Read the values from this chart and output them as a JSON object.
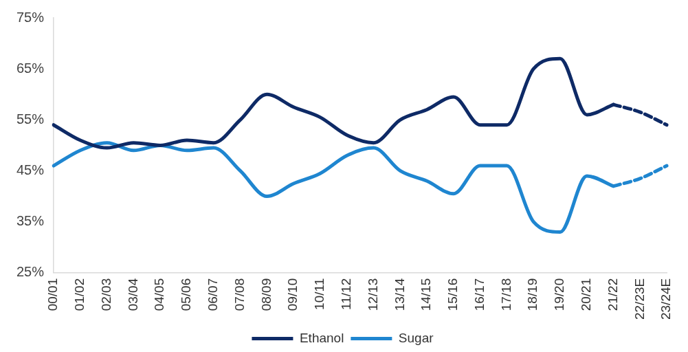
{
  "chart_data": {
    "type": "line",
    "categories": [
      "00/01",
      "01/02",
      "02/03",
      "03/04",
      "04/05",
      "05/06",
      "06/07",
      "07/08",
      "08/09",
      "09/10",
      "10/11",
      "11/12",
      "12/13",
      "13/14",
      "14/15",
      "15/16",
      "16/17",
      "17/18",
      "18/19",
      "19/20",
      "20/21",
      "21/22",
      "22/23E",
      "23/24E"
    ],
    "series": [
      {
        "name": "Ethanol",
        "color": "#0e2a66",
        "line_style": "solid",
        "values": [
          54,
          51,
          49.5,
          50.5,
          50,
          51,
          50.5,
          55,
          60,
          57.5,
          55.5,
          52,
          50.5,
          55,
          57,
          59.5,
          54,
          54,
          65,
          67,
          56,
          58,
          null,
          null
        ]
      },
      {
        "name": "Sugar",
        "color": "#1f86d0",
        "line_style": "solid",
        "values": [
          46,
          49,
          50.5,
          49,
          50,
          49,
          49.5,
          45,
          40,
          42.5,
          44.5,
          48,
          49.5,
          45,
          43,
          40.5,
          46,
          46,
          35,
          33,
          44,
          42,
          null,
          null
        ]
      },
      {
        "color": "#0e2a66",
        "line_style": "dashed",
        "values": [
          null,
          null,
          null,
          null,
          null,
          null,
          null,
          null,
          null,
          null,
          null,
          null,
          null,
          null,
          null,
          null,
          null,
          null,
          null,
          null,
          null,
          58,
          56.5,
          54
        ]
      },
      {
        "color": "#1f86d0",
        "line_style": "dashed",
        "values": [
          null,
          null,
          null,
          null,
          null,
          null,
          null,
          null,
          null,
          null,
          null,
          null,
          null,
          null,
          null,
          null,
          null,
          null,
          null,
          null,
          null,
          42,
          43.5,
          46
        ]
      }
    ],
    "ylim": [
      25,
      75
    ],
    "yticks": [
      {
        "value": 25,
        "label": "25%"
      },
      {
        "value": 35,
        "label": "35%"
      },
      {
        "value": 45,
        "label": "45%"
      },
      {
        "value": 55,
        "label": "55%"
      },
      {
        "value": 65,
        "label": "65%"
      },
      {
        "value": 75,
        "label": "75%"
      }
    ],
    "grid": false,
    "legend": "bottom",
    "marker": "none"
  }
}
